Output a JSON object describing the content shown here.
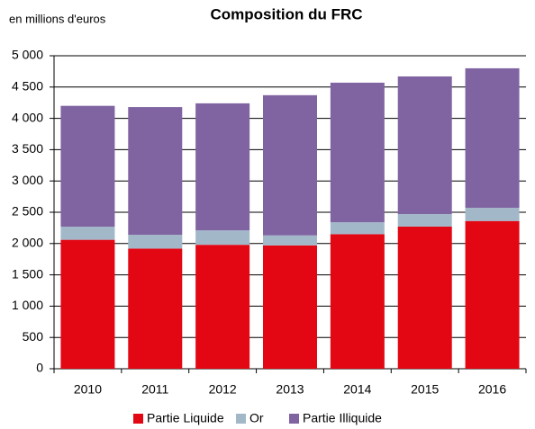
{
  "chart_data": {
    "type": "stacked-bar",
    "title": "Composition du FRC",
    "y_label": "en millions d'euros",
    "categories": [
      "2010",
      "2011",
      "2012",
      "2013",
      "2014",
      "2015",
      "2016"
    ],
    "series": [
      {
        "name": "Partie Liquide",
        "color": "#e30613",
        "values": [
          2060,
          1920,
          1980,
          1970,
          2150,
          2270,
          2360
        ]
      },
      {
        "name": "Or",
        "color": "#a2b8c9",
        "values": [
          210,
          220,
          230,
          160,
          190,
          200,
          210
        ]
      },
      {
        "name": "Partie Illiquide",
        "color": "#8064a2",
        "values": [
          1930,
          2040,
          2030,
          2240,
          2230,
          2200,
          2230
        ]
      }
    ],
    "ylim": [
      0,
      5000
    ],
    "yticks": [
      0,
      500,
      {
        "value": 1000,
        "label": "1 000"
      },
      {
        "value": 1500,
        "label": "1 500"
      },
      {
        "value": 2000,
        "label": "2 000"
      },
      {
        "value": 2500,
        "label": "2 500"
      },
      {
        "value": 3000,
        "label": "3 000"
      },
      {
        "value": 3500,
        "label": "3 500"
      },
      {
        "value": 4000,
        "label": "4 000"
      },
      {
        "value": 4500,
        "label": "4 500"
      },
      {
        "value": 5000,
        "label": "5 000"
      }
    ],
    "grid": true
  }
}
